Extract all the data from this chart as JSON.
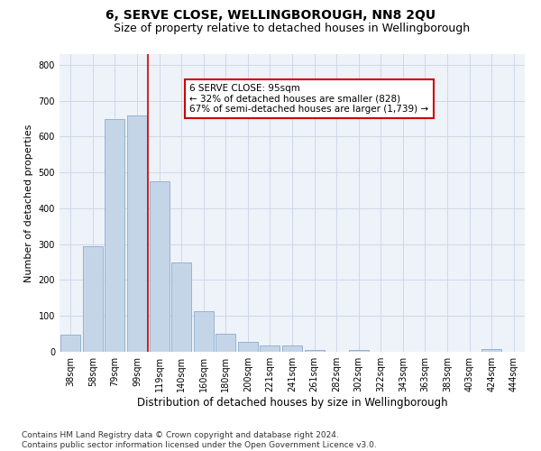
{
  "title": "6, SERVE CLOSE, WELLINGBOROUGH, NN8 2QU",
  "subtitle": "Size of property relative to detached houses in Wellingborough",
  "xlabel": "Distribution of detached houses by size in Wellingborough",
  "ylabel": "Number of detached properties",
  "bar_labels": [
    "38sqm",
    "58sqm",
    "79sqm",
    "99sqm",
    "119sqm",
    "140sqm",
    "160sqm",
    "180sqm",
    "200sqm",
    "221sqm",
    "241sqm",
    "261sqm",
    "282sqm",
    "302sqm",
    "322sqm",
    "343sqm",
    "363sqm",
    "383sqm",
    "403sqm",
    "424sqm",
    "444sqm"
  ],
  "bar_values": [
    47,
    295,
    650,
    660,
    475,
    250,
    112,
    50,
    28,
    18,
    17,
    5,
    1,
    5,
    1,
    1,
    1,
    1,
    0,
    8,
    0
  ],
  "bar_color": "#c5d5e8",
  "bar_edge_color": "#8aabcc",
  "property_line_color": "#cc0000",
  "annotation_text": "6 SERVE CLOSE: 95sqm\n← 32% of detached houses are smaller (828)\n67% of semi-detached houses are larger (1,739) →",
  "annotation_box_color": "#cc0000",
  "ylim": [
    0,
    830
  ],
  "yticks": [
    0,
    100,
    200,
    300,
    400,
    500,
    600,
    700,
    800
  ],
  "grid_color": "#d0d8e8",
  "background_color": "#eef2f9",
  "footer_text": "Contains HM Land Registry data © Crown copyright and database right 2024.\nContains public sector information licensed under the Open Government Licence v3.0.",
  "title_fontsize": 10,
  "subtitle_fontsize": 9,
  "xlabel_fontsize": 8.5,
  "ylabel_fontsize": 8,
  "tick_fontsize": 7,
  "annotation_fontsize": 7.5,
  "footer_fontsize": 6.5
}
